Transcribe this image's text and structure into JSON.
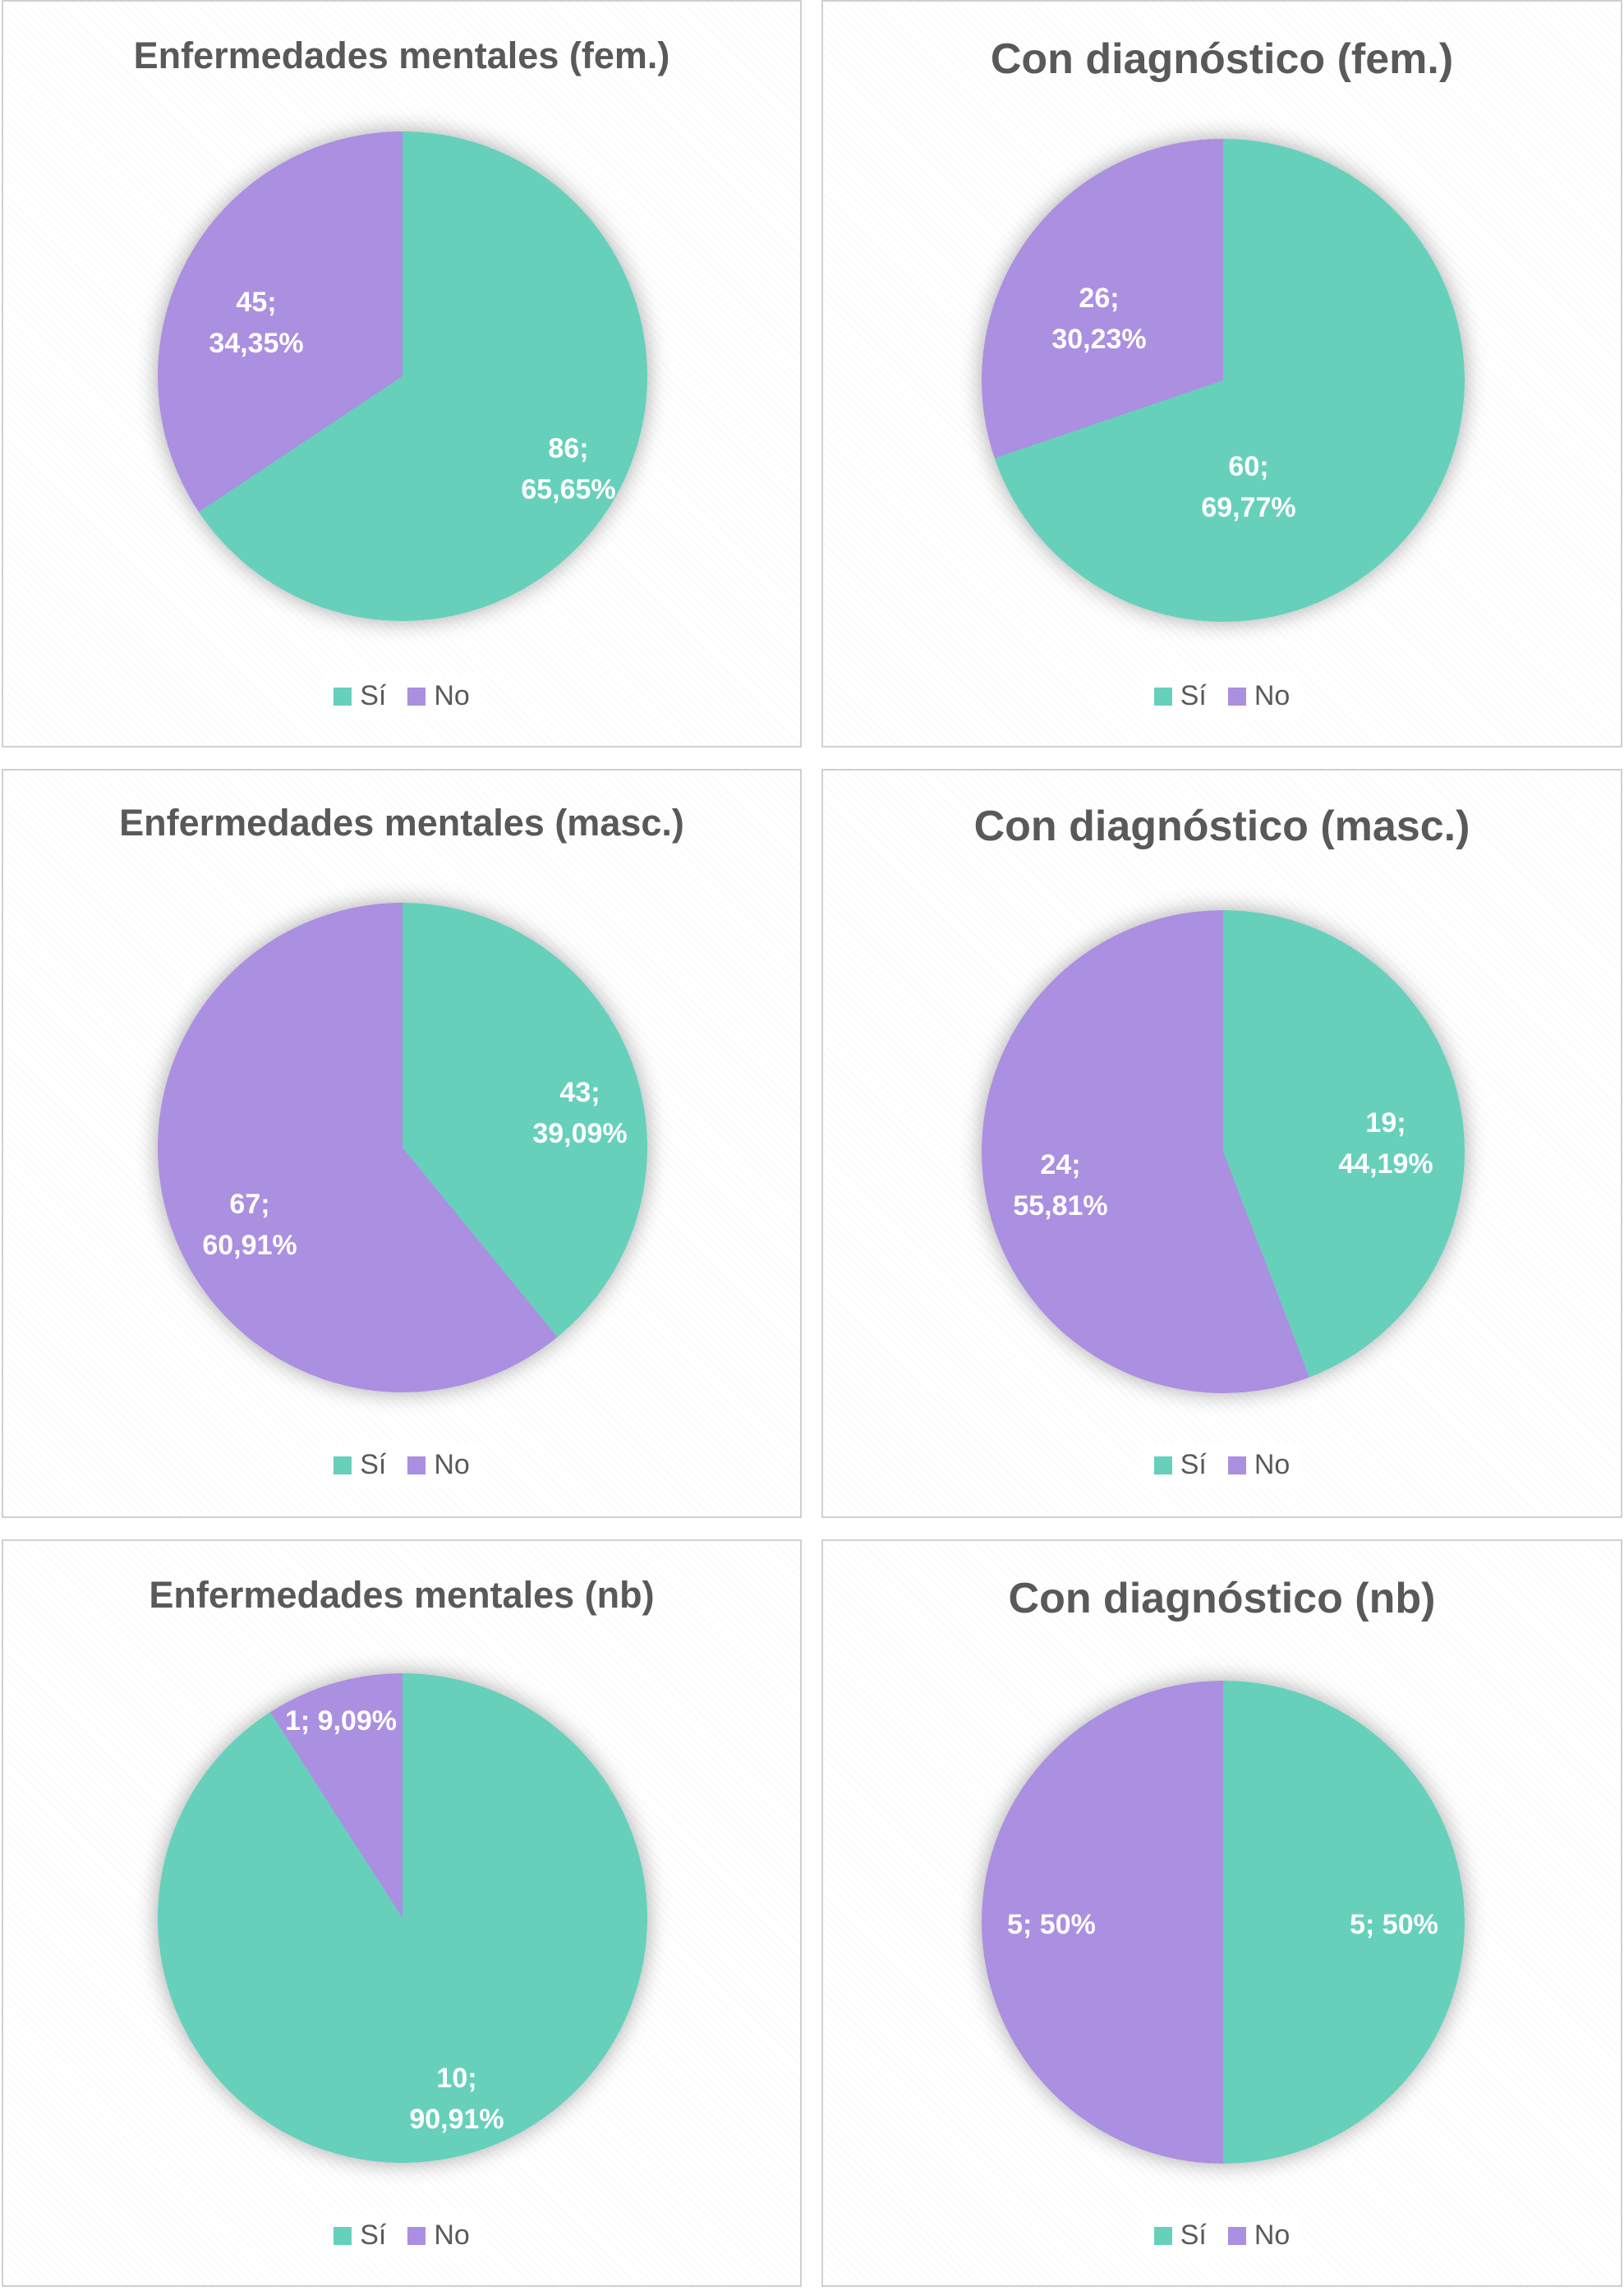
{
  "colors": {
    "si": "#66d0bb",
    "no": "#ab8fe0"
  },
  "legend": {
    "si": "Sí",
    "no": "No"
  },
  "chart_data": [
    {
      "type": "pie",
      "title": "Enfermedades mentales (fem.)",
      "slices": [
        {
          "name": "Sí",
          "value": 86,
          "percent": "65,65%",
          "label_lines": [
            "86;",
            "65,65%"
          ]
        },
        {
          "name": "No",
          "value": 45,
          "percent": "34,35%",
          "label_lines": [
            "45;",
            "34,35%"
          ]
        }
      ]
    },
    {
      "type": "pie",
      "title": "Con diagnóstico (fem.)",
      "slices": [
        {
          "name": "Sí",
          "value": 60,
          "percent": "69,77%",
          "label_lines": [
            "60;",
            "69,77%"
          ]
        },
        {
          "name": "No",
          "value": 26,
          "percent": "30,23%",
          "label_lines": [
            "26;",
            "30,23%"
          ]
        }
      ]
    },
    {
      "type": "pie",
      "title": "Enfermedades mentales (masc.)",
      "slices": [
        {
          "name": "Sí",
          "value": 43,
          "percent": "39,09%",
          "label_lines": [
            "43;",
            "39,09%"
          ]
        },
        {
          "name": "No",
          "value": 67,
          "percent": "60,91%",
          "label_lines": [
            "67;",
            "60,91%"
          ]
        }
      ]
    },
    {
      "type": "pie",
      "title": "Con diagnóstico (masc.)",
      "slices": [
        {
          "name": "Sí",
          "value": 19,
          "percent": "44,19%",
          "label_lines": [
            "19;",
            "44,19%"
          ]
        },
        {
          "name": "No",
          "value": 24,
          "percent": "55,81%",
          "label_lines": [
            "24;",
            "55,81%"
          ]
        }
      ]
    },
    {
      "type": "pie",
      "title": "Enfermedades mentales (nb)",
      "slices": [
        {
          "name": "Sí",
          "value": 10,
          "percent": "90,91%",
          "label_lines": [
            "10;",
            "90,91%"
          ]
        },
        {
          "name": "No",
          "value": 1,
          "percent": "9,09%",
          "label_lines": [
            "1; 9,09%"
          ]
        }
      ]
    },
    {
      "type": "pie",
      "title": "Con diagnóstico (nb)",
      "slices": [
        {
          "name": "Sí",
          "value": 5,
          "percent": "50%",
          "label_lines": [
            "5; 50%"
          ]
        },
        {
          "name": "No",
          "value": 5,
          "percent": "50%",
          "label_lines": [
            "5; 50%"
          ]
        }
      ]
    }
  ]
}
